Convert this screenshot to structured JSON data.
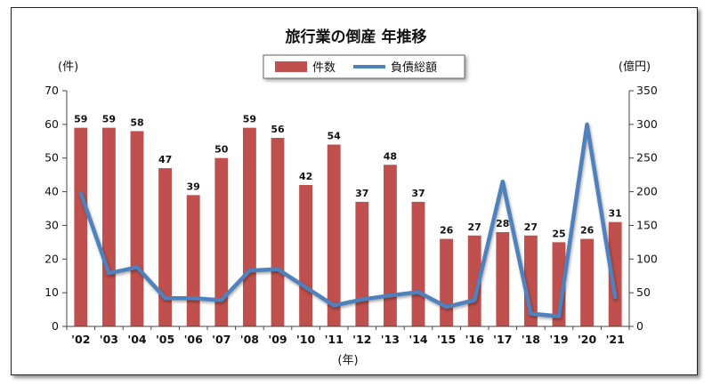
{
  "chart_data": {
    "type": "bar+line",
    "title": "旅行業の倒産 年推移",
    "categories": [
      "'02",
      "'03",
      "'04",
      "'05",
      "'06",
      "'07",
      "'08",
      "'09",
      "'10",
      "'11",
      "'12",
      "'13",
      "'14",
      "'15",
      "'16",
      "'17",
      "'18",
      "'19",
      "'20",
      "'21"
    ],
    "xlabel": "(年)",
    "y_left": {
      "label": "(件)",
      "lim": [
        0,
        70
      ],
      "ticks": [
        0,
        10,
        20,
        30,
        40,
        50,
        60,
        70
      ]
    },
    "y_right": {
      "label": "(億円)",
      "lim": [
        0,
        350
      ],
      "ticks": [
        0,
        50,
        100,
        150,
        200,
        250,
        300,
        350
      ]
    },
    "legend": "top-center",
    "grid": false,
    "series": [
      {
        "name": "件数",
        "type": "bar",
        "axis": "left",
        "color": "#c0504d",
        "values": [
          59,
          59,
          58,
          47,
          39,
          50,
          59,
          56,
          42,
          54,
          37,
          48,
          37,
          26,
          27,
          28,
          27,
          25,
          26,
          31
        ]
      },
      {
        "name": "負債総額",
        "type": "line",
        "axis": "right",
        "color": "#4f81bd",
        "values": [
          198,
          79,
          88,
          42,
          42,
          39,
          83,
          85,
          58,
          31,
          40,
          46,
          51,
          29,
          39,
          215,
          19,
          15,
          300,
          43
        ]
      }
    ]
  }
}
